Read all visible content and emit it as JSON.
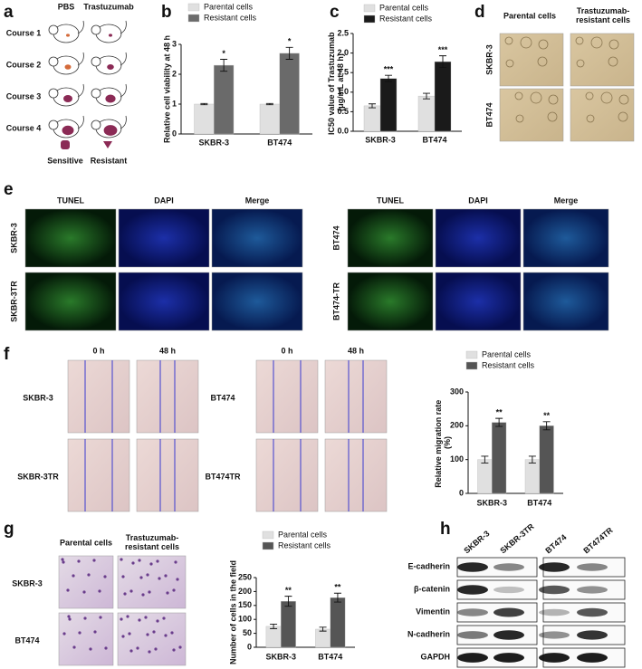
{
  "panel_a": {
    "panel_label": "a",
    "columns": [
      "PBS",
      "Trastuzumab"
    ],
    "rows": [
      "Course 1",
      "Course 2",
      "Course 3",
      "Course 4"
    ],
    "legend": [
      "Sensitive",
      "Resistant"
    ]
  },
  "panel_d": {
    "panel_label": "d",
    "columns": [
      "Parental cells",
      "Trastuzumab-resistant cells"
    ],
    "rows": [
      "SKBR-3",
      "BT474"
    ]
  },
  "panel_e": {
    "panel_label": "e",
    "groups": [
      {
        "columns": [
          "TUNEL",
          "DAPI",
          "Merge"
        ],
        "rows": [
          "SKBR-3",
          "SKBR-3TR"
        ]
      },
      {
        "columns": [
          "TUNEL",
          "DAPI",
          "Merge"
        ],
        "rows": [
          "BT474",
          "BT474-TR"
        ]
      }
    ]
  },
  "panel_f": {
    "panel_label": "f",
    "groups": [
      {
        "columns": [
          "0 h",
          "48 h"
        ],
        "rows": [
          "SKBR-3",
          "SKBR-3TR"
        ]
      },
      {
        "columns": [
          "0 h",
          "48 h"
        ],
        "rows": [
          "BT474",
          "BT474TR"
        ]
      }
    ]
  },
  "panel_g": {
    "panel_label": "g",
    "columns": [
      "Parental cells",
      "Trastuzumab-resistant cells"
    ],
    "rows": [
      "SKBR-3",
      "BT474"
    ]
  },
  "panel_h": {
    "panel_label": "h",
    "lanes": [
      "SKBR-3",
      "SKBR-3TR",
      "BT474",
      "BT474TR"
    ],
    "proteins": [
      "E-cadherin",
      "β-catenin",
      "Vimentin",
      "N-cadherin",
      "GAPDH"
    ]
  },
  "chart_data": [
    {
      "panel_label": "b",
      "type": "bar",
      "y_label": "Relative cell viability at 48 h",
      "categories": [
        "SKBR-3",
        "BT474"
      ],
      "series": [
        {
          "name": "Parental cells",
          "color": "#e0e0e0",
          "values": [
            1.0,
            1.0
          ],
          "errors": [
            0.02,
            0.02
          ]
        },
        {
          "name": "Resistant cells",
          "color": "#6a6a6a",
          "values": [
            2.3,
            2.7
          ],
          "errors": [
            0.2,
            0.2
          ],
          "significance": [
            "*",
            "*"
          ]
        }
      ],
      "ylim": [
        0,
        3
      ],
      "yticks": [
        0,
        1,
        2,
        3
      ]
    },
    {
      "panel_label": "c",
      "type": "bar",
      "y_label": "IC50 value of Trastuzumab (μg/mL at 48 h)",
      "categories": [
        "SKBR-3",
        "BT474"
      ],
      "series": [
        {
          "name": "Parental cells",
          "color": "#e0e0e0",
          "values": [
            0.65,
            0.9
          ],
          "errors": [
            0.05,
            0.07
          ]
        },
        {
          "name": "Resistant cells",
          "color": "#1a1a1a",
          "values": [
            1.35,
            1.78
          ],
          "errors": [
            0.08,
            0.15
          ],
          "significance": [
            "***",
            "***"
          ]
        }
      ],
      "ylim": [
        0,
        2.5
      ],
      "yticks": [
        {
          "value": 0,
          "label": "0.0"
        },
        0.5,
        {
          "value": 1,
          "label": "1.0"
        },
        1.5,
        {
          "value": 2,
          "label": "2.0"
        },
        2.5
      ]
    },
    {
      "panel_label": null,
      "type": "bar",
      "y_label": "Relative migration rate (%)",
      "categories": [
        "SKBR-3",
        "BT474"
      ],
      "series": [
        {
          "name": "Parental cells",
          "color": "#e0e0e0",
          "values": [
            100,
            100
          ],
          "errors": [
            10,
            10
          ]
        },
        {
          "name": "Resistant cells",
          "color": "#555555",
          "values": [
            210,
            200
          ],
          "errors": [
            12,
            12
          ],
          "significance": [
            "**",
            "**"
          ]
        }
      ],
      "ylim": [
        0,
        300
      ],
      "yticks": [
        0,
        100,
        200,
        300
      ]
    },
    {
      "panel_label": null,
      "type": "bar",
      "y_label": "Number of cells in the field",
      "categories": [
        "SKBR-3",
        "BT474"
      ],
      "series": [
        {
          "name": "Parental cells",
          "color": "#e0e0e0",
          "values": [
            75,
            65
          ],
          "errors": [
            8,
            7
          ]
        },
        {
          "name": "Resistant cells",
          "color": "#555555",
          "values": [
            165,
            178
          ],
          "errors": [
            18,
            16
          ],
          "significance": [
            "**",
            "**"
          ]
        }
      ],
      "ylim": [
        0,
        250
      ],
      "yticks": [
        0,
        50,
        100,
        150,
        200,
        250
      ]
    }
  ]
}
